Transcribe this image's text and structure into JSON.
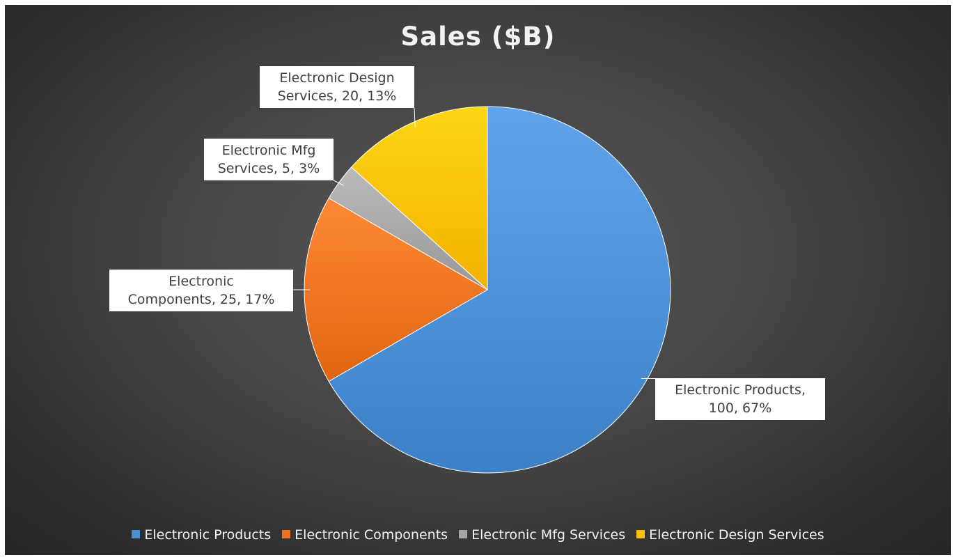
{
  "chart_data": {
    "type": "pie",
    "title": "Sales ($B)",
    "slices": [
      {
        "name": "Electronic Products",
        "value": 100,
        "percent": "67%",
        "color": "#4a8fd6",
        "label_line1": "Electronic Products,",
        "label_line2": "100, 67%"
      },
      {
        "name": "Electronic Components",
        "value": 25,
        "percent": "17%",
        "color": "#ed7320",
        "label_line1": "Electronic",
        "label_line2": "Components, 25, 17%"
      },
      {
        "name": "Electronic Mfg Services",
        "value": 5,
        "percent": "3%",
        "color": "#a5a5a5",
        "label_line1": "Electronic Mfg",
        "label_line2": "Services, 5, 3%"
      },
      {
        "name": "Electronic Design Services",
        "value": 20,
        "percent": "13%",
        "color": "#ffc000",
        "label_line1": "Electronic Design",
        "label_line2": "Services, 20, 13%"
      }
    ],
    "legend_position": "bottom"
  }
}
